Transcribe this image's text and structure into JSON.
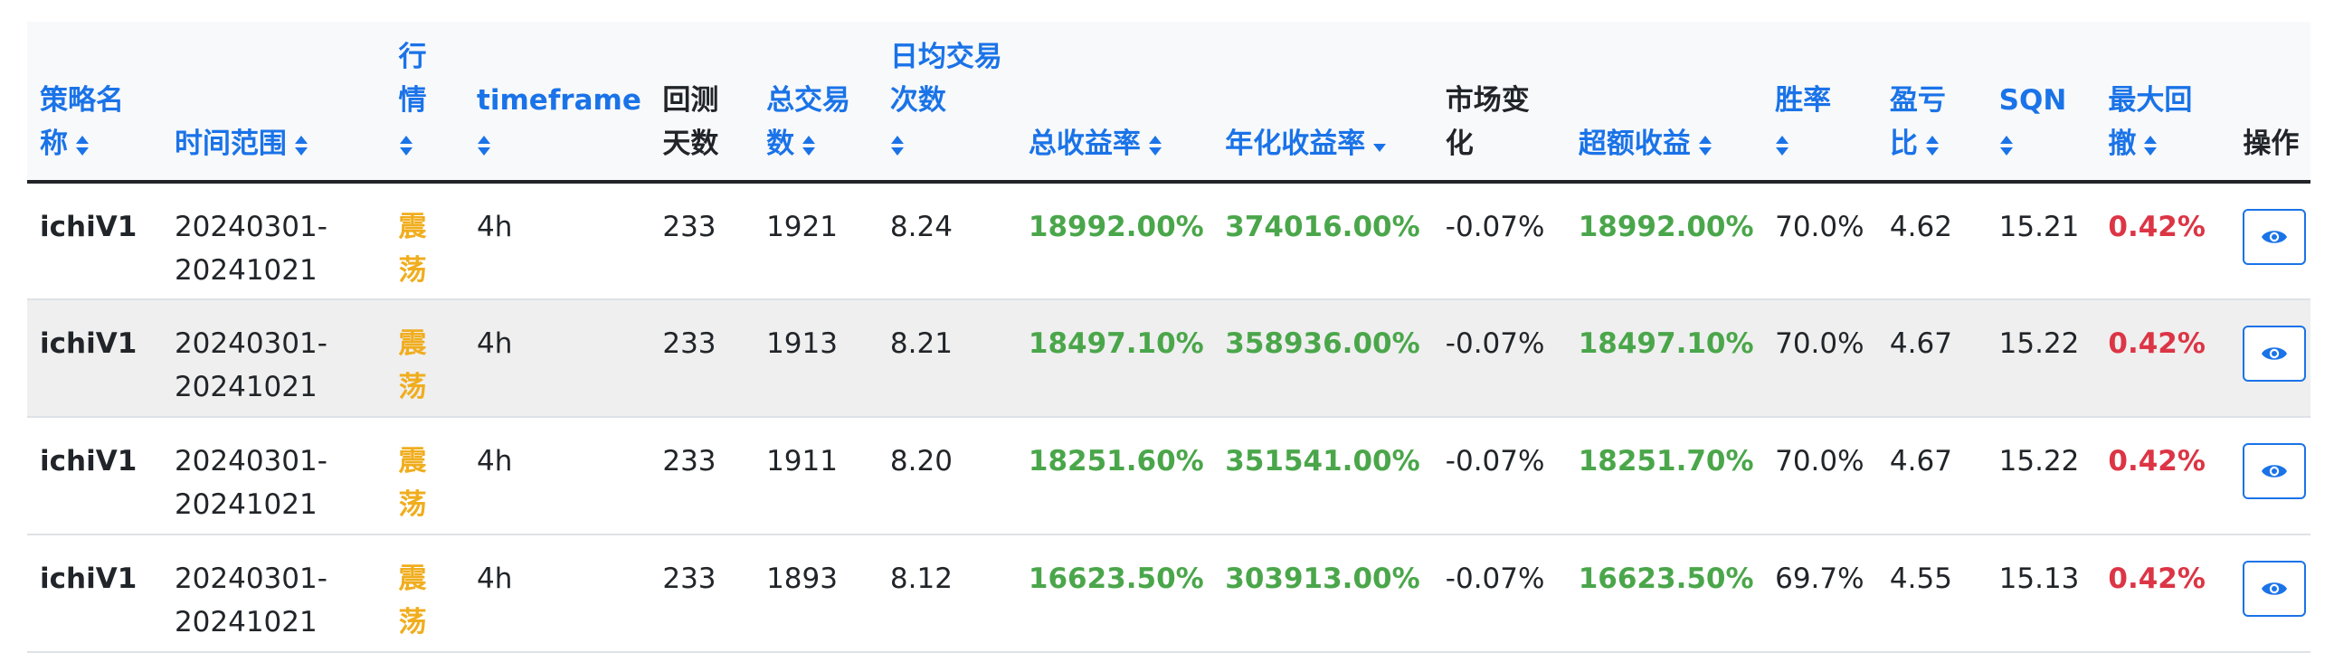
{
  "columns": [
    {
      "key": "strategy",
      "label": "策略名称",
      "sortable": true
    },
    {
      "key": "range",
      "label": "时间范围",
      "sortable": true
    },
    {
      "key": "market",
      "label": "行情",
      "sortable": true
    },
    {
      "key": "timeframe",
      "label": "timeframe",
      "sortable": true
    },
    {
      "key": "days",
      "label": "回测天数",
      "sortable": false
    },
    {
      "key": "trades",
      "label": "总交易数",
      "sortable": true
    },
    {
      "key": "daily",
      "label": "日均交易次数",
      "sortable": true
    },
    {
      "key": "total_return",
      "label": "总收益率",
      "sortable": true
    },
    {
      "key": "annual_return",
      "label": "年化收益率",
      "sortable": true,
      "active": true
    },
    {
      "key": "market_change",
      "label": "市场变化",
      "sortable": false
    },
    {
      "key": "excess",
      "label": "超额收益",
      "sortable": true
    },
    {
      "key": "winrate",
      "label": "胜率",
      "sortable": true
    },
    {
      "key": "pl_ratio",
      "label": "盈亏比",
      "sortable": true
    },
    {
      "key": "sqn",
      "label": "SQN",
      "sortable": true
    },
    {
      "key": "drawdown",
      "label": "最大回撤",
      "sortable": true
    },
    {
      "key": "action",
      "label": "操作",
      "sortable": false
    }
  ],
  "rows": [
    {
      "strategy": "ichiV1",
      "range": "20240301-20241021",
      "market": "震荡",
      "timeframe": "4h",
      "days": "233",
      "trades": "1921",
      "daily": "8.24",
      "total_return": "18992.00%",
      "annual_return": "374016.00%",
      "market_change": "-0.07%",
      "excess": "18992.00%",
      "winrate": "70.0%",
      "pl_ratio": "4.62",
      "sqn": "15.21",
      "drawdown": "0.42%"
    },
    {
      "strategy": "ichiV1",
      "range": "20240301-20241021",
      "market": "震荡",
      "timeframe": "4h",
      "days": "233",
      "trades": "1913",
      "daily": "8.21",
      "total_return": "18497.10%",
      "annual_return": "358936.00%",
      "market_change": "-0.07%",
      "excess": "18497.10%",
      "winrate": "70.0%",
      "pl_ratio": "4.67",
      "sqn": "15.22",
      "drawdown": "0.42%"
    },
    {
      "strategy": "ichiV1",
      "range": "20240301-20241021",
      "market": "震荡",
      "timeframe": "4h",
      "days": "233",
      "trades": "1911",
      "daily": "8.20",
      "total_return": "18251.60%",
      "annual_return": "351541.00%",
      "market_change": "-0.07%",
      "excess": "18251.70%",
      "winrate": "70.0%",
      "pl_ratio": "4.67",
      "sqn": "15.22",
      "drawdown": "0.42%"
    },
    {
      "strategy": "ichiV1",
      "range": "20240301-20241021",
      "market": "震荡",
      "timeframe": "4h",
      "days": "233",
      "trades": "1893",
      "daily": "8.12",
      "total_return": "16623.50%",
      "annual_return": "303913.00%",
      "market_change": "-0.07%",
      "excess": "16623.50%",
      "winrate": "69.7%",
      "pl_ratio": "4.55",
      "sqn": "15.13",
      "drawdown": "0.42%"
    }
  ],
  "icons": {
    "sort": "sort-updown-icon",
    "sort_active": "sort-down-icon",
    "view": "eye-icon"
  },
  "colors": {
    "link": "#1a73e8",
    "positive": "#4aa64a",
    "negative": "#dc3545",
    "market": "#f0ad1e"
  }
}
